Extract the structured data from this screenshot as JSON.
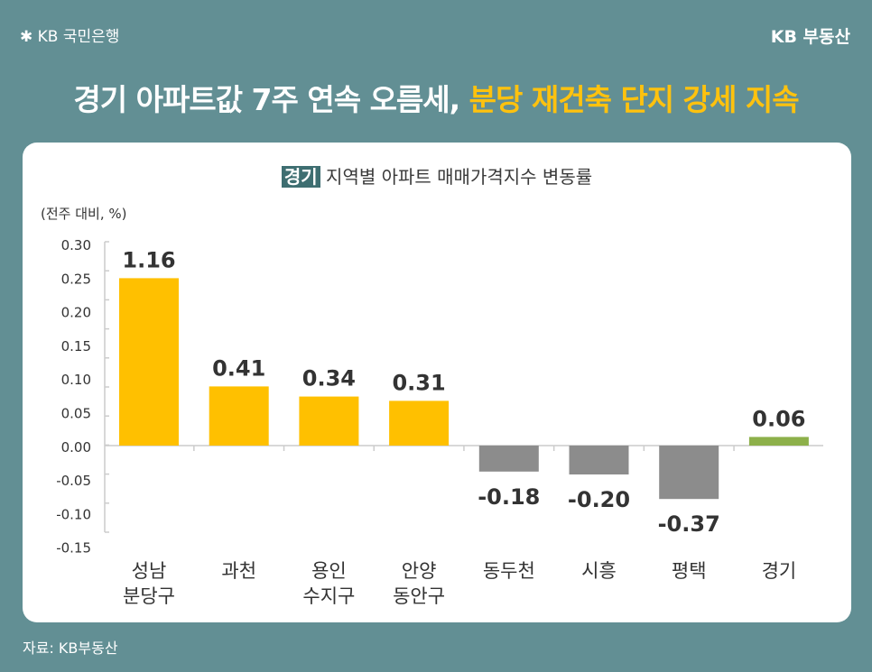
{
  "header": {
    "bank_logo": "KB 국민은행",
    "brand": "KB 부동산"
  },
  "headline": {
    "main": "경기 아파트값 7주 연속 오름세, ",
    "highlight": "분당 재건축 단지 강세 지속"
  },
  "footer": {
    "source": "자료: KB부동산"
  },
  "colors": {
    "background": "#628f94",
    "positive": "#ffc000",
    "negative": "#8c8c8c",
    "total": "#8db04a",
    "tag": "#3e6e71"
  },
  "chart_data": {
    "type": "bar",
    "title_tag": "경기",
    "title": "지역별 아파트 매매가격지수 변동률",
    "ylabel": "(전주 대비, %)",
    "yticks": [
      "0.30",
      "0.25",
      "0.20",
      "0.15",
      "0.10",
      "0.05",
      "0.00",
      "-0.05",
      "-0.10",
      "-0.15"
    ],
    "ylim": [
      -0.15,
      0.3
    ],
    "categories": [
      [
        "성남",
        "분당구"
      ],
      [
        "과천"
      ],
      [
        "용인",
        "수지구"
      ],
      [
        "안양",
        "동안구"
      ],
      [
        "동두천"
      ],
      [
        "시흥"
      ],
      [
        "평택"
      ],
      [
        "경기"
      ]
    ],
    "values": [
      1.16,
      0.41,
      0.34,
      0.31,
      -0.18,
      -0.2,
      -0.37,
      0.06
    ],
    "value_labels": [
      "1.16",
      "0.41",
      "0.34",
      "0.31",
      "-0.18",
      "-0.20",
      "-0.37",
      "0.06"
    ],
    "grid": false
  }
}
